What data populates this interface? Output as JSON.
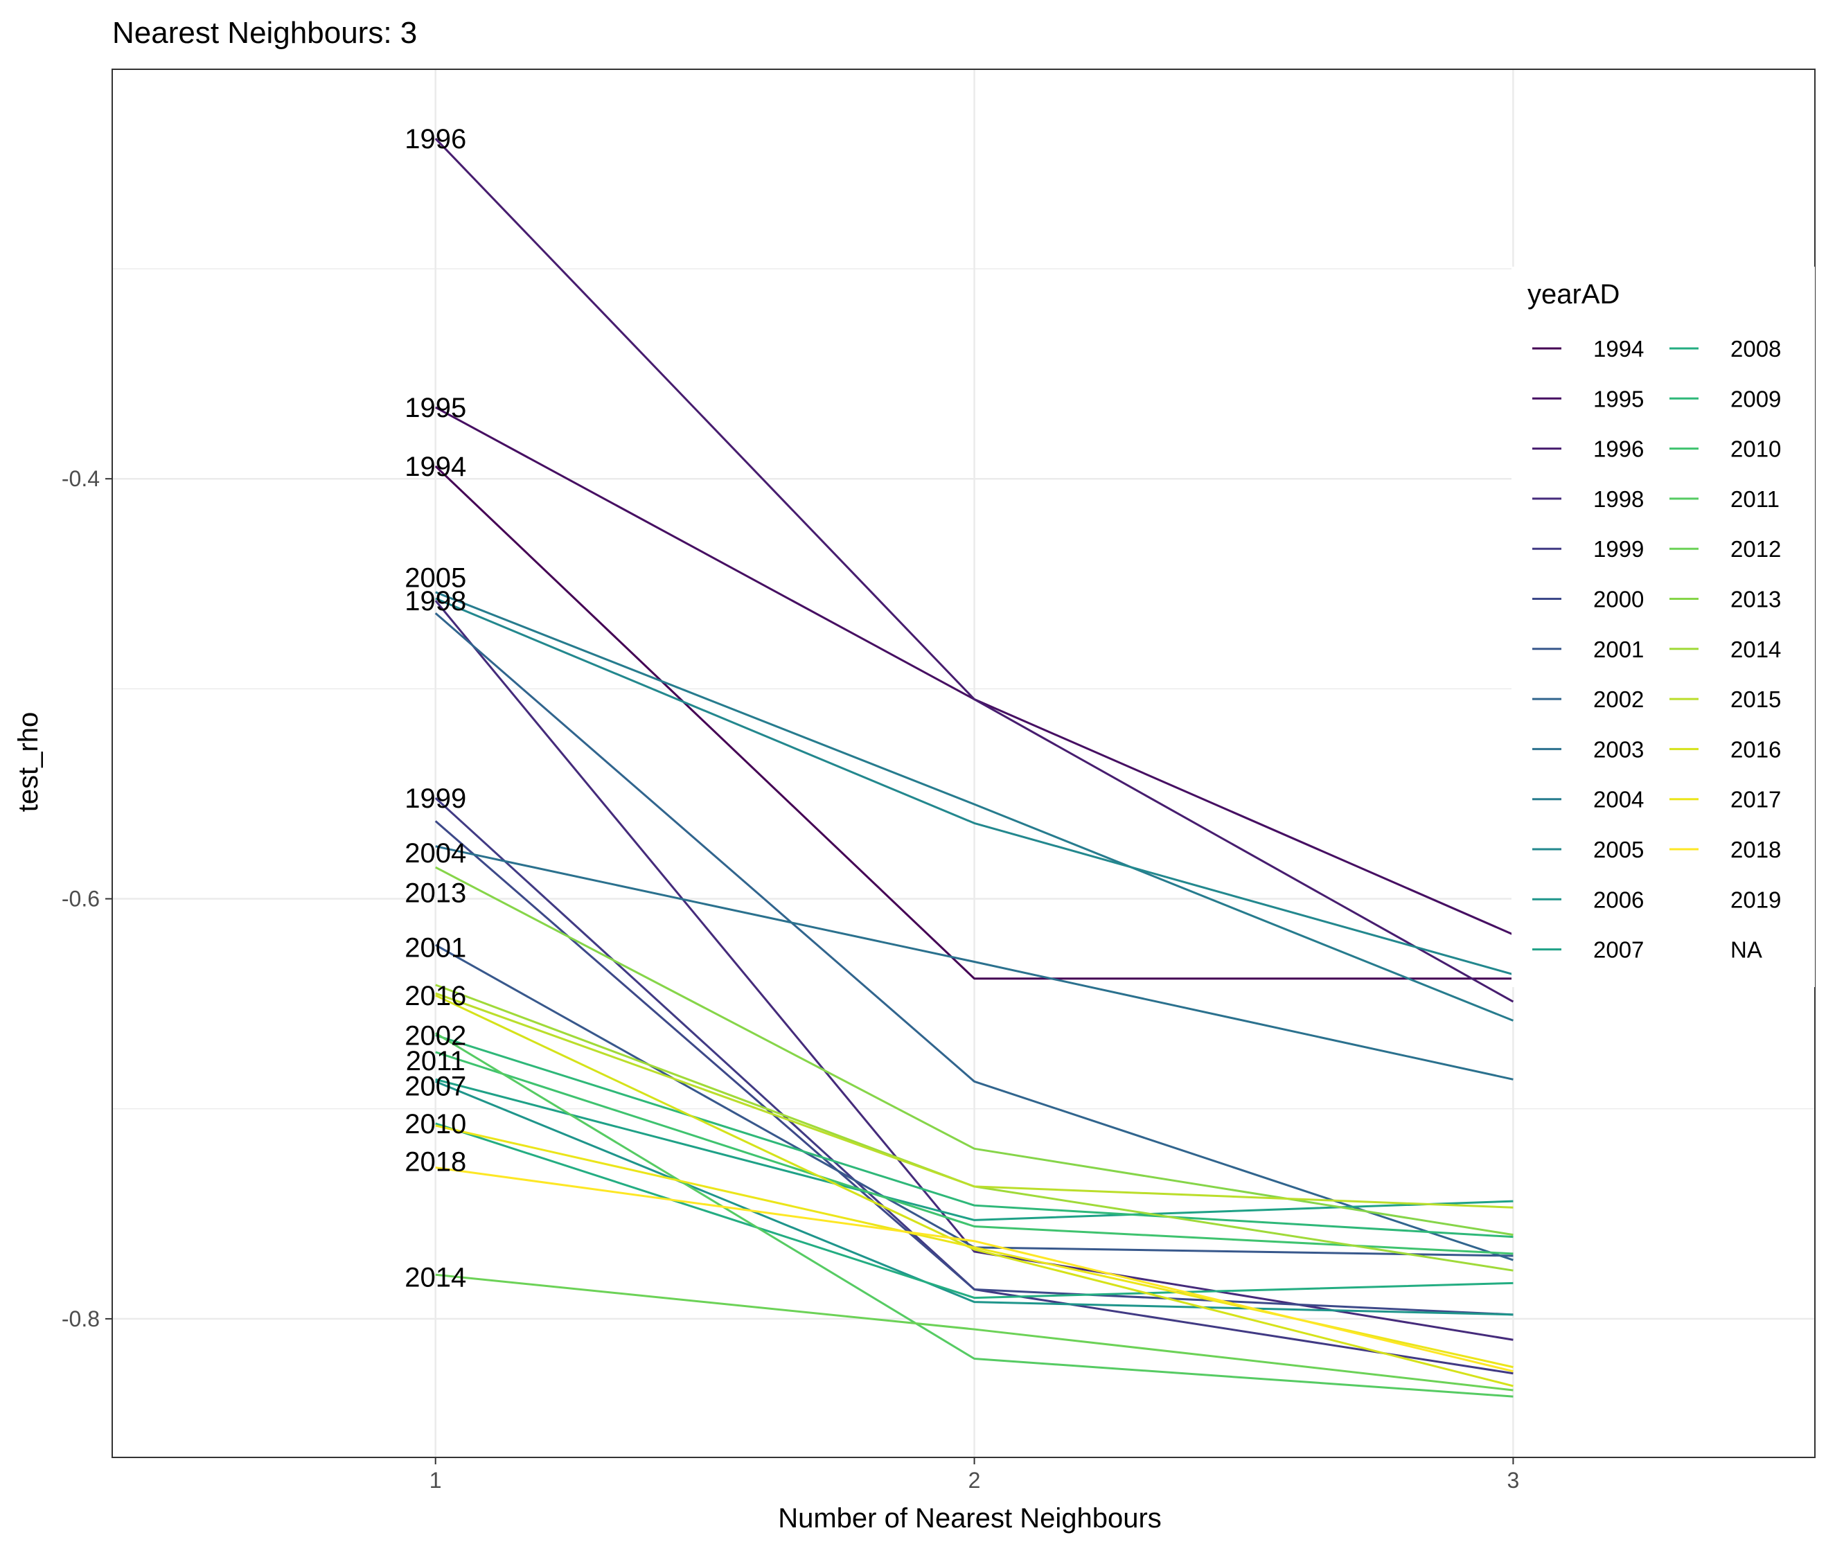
{
  "chart_data": {
    "type": "line",
    "title": "Nearest Neighbours: 3",
    "xlabel": "Number of Nearest Neighbours",
    "ylabel": "test_rho",
    "x": [
      1,
      2,
      3
    ],
    "x_ticks": [
      "1",
      "2",
      "3"
    ],
    "xlim": [
      0.4,
      3.56
    ],
    "y_ticks": [
      "-0.4",
      "-0.6",
      "-0.8"
    ],
    "ylim": [
      -0.866,
      -0.205
    ],
    "grid": true,
    "legend": {
      "title": "yearAD",
      "placement": "right",
      "columns": [
        [
          "1994",
          "1995",
          "1996",
          "1998",
          "1999",
          "2000",
          "2001",
          "2002",
          "2003",
          "2004",
          "2005",
          "2006",
          "2007"
        ],
        [
          "2008",
          "2009",
          "2010",
          "2011",
          "2012",
          "2013",
          "2014",
          "2015",
          "2016",
          "2017",
          "2018",
          "2019",
          "NA"
        ]
      ]
    },
    "series": [
      {
        "name": "1994",
        "color": "#440154",
        "values": [
          -0.394,
          -0.638,
          -0.638
        ]
      },
      {
        "name": "1995",
        "color": "#460F62",
        "values": [
          -0.366,
          -0.505,
          -0.617
        ]
      },
      {
        "name": "1996",
        "color": "#471D6F",
        "values": [
          -0.238,
          -0.505,
          -0.649
        ]
      },
      {
        "name": "1998",
        "color": "#452B7B",
        "values": [
          -0.458,
          -0.768,
          -0.81
        ]
      },
      {
        "name": "1999",
        "color": "#413A84",
        "values": [
          -0.552,
          -0.786,
          -0.826
        ]
      },
      {
        "name": "2000",
        "color": "#3D4989",
        "values": [
          -0.563,
          -0.786,
          -0.798
        ]
      },
      {
        "name": "2001",
        "color": "#38588C",
        "values": [
          -0.622,
          -0.766,
          -0.77
        ]
      },
      {
        "name": "2002",
        "color": "#31658E",
        "values": [
          -0.464,
          -0.687,
          -0.772
        ]
      },
      {
        "name": "2003",
        "color": "#2B718E",
        "values": [
          -0.575,
          -0.63,
          -0.686
        ]
      },
      {
        "name": "2004",
        "color": "#277C8E",
        "values": [
          -0.454,
          -0.555,
          -0.658
        ]
      },
      {
        "name": "2005",
        "color": "#23888E",
        "values": [
          -0.457,
          -0.564,
          -0.636
        ]
      },
      {
        "name": "2006",
        "color": "#1F958B",
        "values": [
          -0.687,
          -0.792,
          -0.798
        ]
      },
      {
        "name": "2007",
        "color": "#1FA187",
        "values": [
          -0.686,
          -0.753,
          -0.744
        ]
      },
      {
        "name": "2008",
        "color": "#24AD82",
        "values": [
          -0.707,
          -0.79,
          -0.783
        ]
      },
      {
        "name": "2009",
        "color": "#2FB879",
        "values": [
          -0.665,
          -0.746,
          -0.761
        ]
      },
      {
        "name": "2010",
        "color": "#3FC36F",
        "values": [
          -0.673,
          -0.756,
          -0.769
        ]
      },
      {
        "name": "2011",
        "color": "#56CB63",
        "values": [
          -0.664,
          -0.819,
          -0.837
        ]
      },
      {
        "name": "2012",
        "color": "#6CD257",
        "values": [
          -0.779,
          -0.805,
          -0.834
        ]
      },
      {
        "name": "2013",
        "color": "#86D549",
        "values": [
          -0.585,
          -0.719,
          -0.76
        ]
      },
      {
        "name": "2014",
        "color": "#A0DA39",
        "values": [
          -0.641,
          -0.737,
          -0.777
        ]
      },
      {
        "name": "2015",
        "color": "#BBDE2B",
        "values": [
          -0.645,
          -0.737,
          -0.747
        ]
      },
      {
        "name": "2016",
        "color": "#D5E21A",
        "values": [
          -0.646,
          -0.767,
          -0.832
        ]
      },
      {
        "name": "2017",
        "color": "#EBE51A",
        "values": [
          -0.708,
          -0.766,
          -0.823
        ]
      },
      {
        "name": "2018",
        "color": "#FDE725",
        "values": [
          -0.728,
          -0.763,
          -0.825
        ]
      }
    ],
    "data_labels": [
      {
        "text": "1996",
        "x": 1,
        "y": -0.238
      },
      {
        "text": "1995",
        "x": 1,
        "y": -0.366
      },
      {
        "text": "1994",
        "x": 1,
        "y": -0.394
      },
      {
        "text": "2005",
        "x": 1,
        "y": -0.447
      },
      {
        "text": "1998",
        "x": 1,
        "y": -0.458
      },
      {
        "text": "1999",
        "x": 1,
        "y": -0.552
      },
      {
        "text": "2004",
        "x": 1,
        "y": -0.578
      },
      {
        "text": "2013",
        "x": 1,
        "y": -0.597
      },
      {
        "text": "2001",
        "x": 1,
        "y": -0.623
      },
      {
        "text": "2016",
        "x": 1,
        "y": -0.646
      },
      {
        "text": "2002",
        "x": 1,
        "y": -0.665
      },
      {
        "text": "2011",
        "x": 1,
        "y": -0.677
      },
      {
        "text": "2007",
        "x": 1,
        "y": -0.689
      },
      {
        "text": "2010",
        "x": 1,
        "y": -0.707
      },
      {
        "text": "2018",
        "x": 1,
        "y": -0.725
      },
      {
        "text": "2014",
        "x": 1,
        "y": -0.78
      }
    ]
  }
}
